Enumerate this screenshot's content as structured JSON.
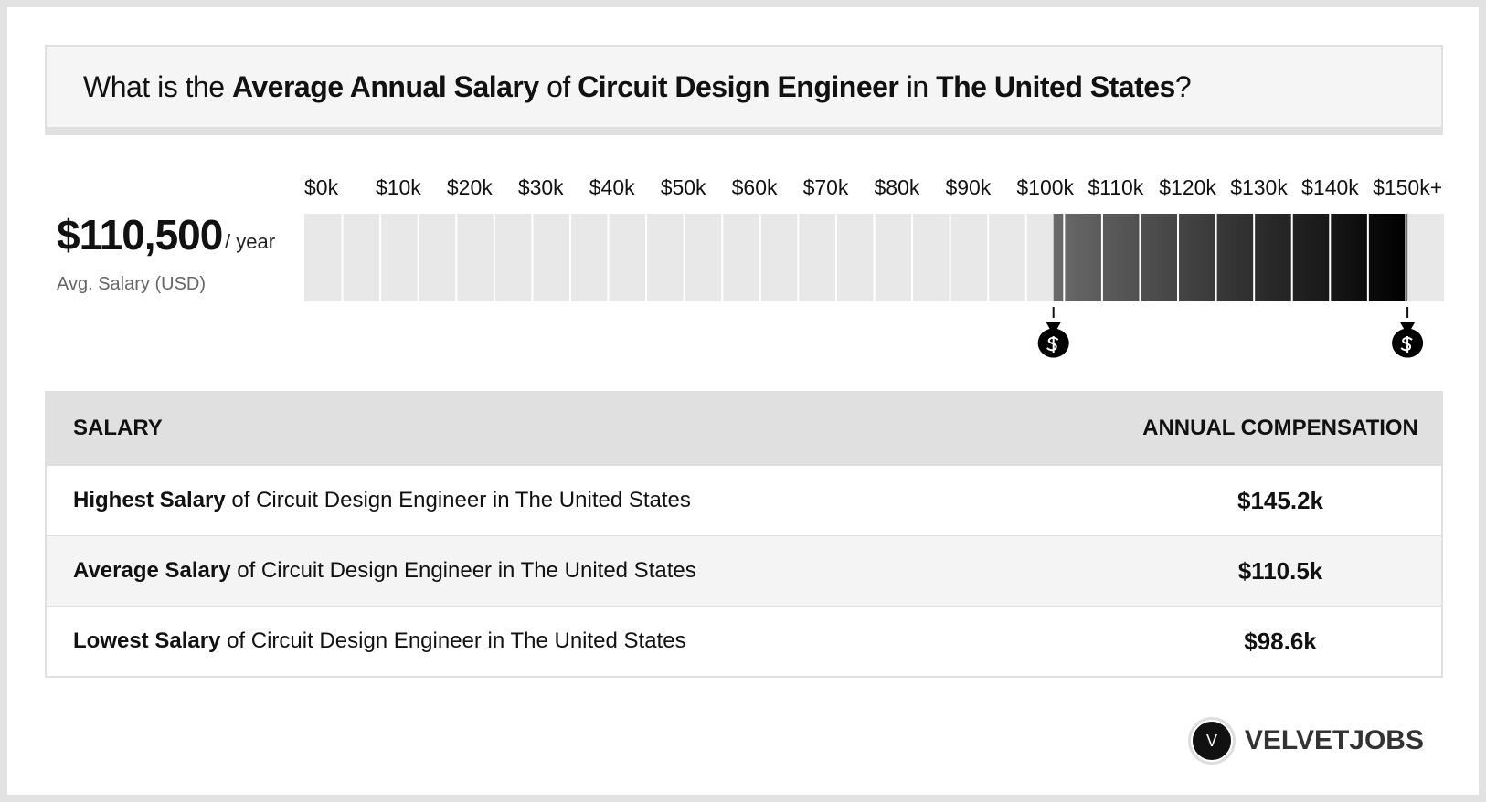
{
  "header": {
    "title_parts": [
      {
        "text": "What is the ",
        "bold": false
      },
      {
        "text": "Average Annual Salary",
        "bold": true
      },
      {
        "text": " of ",
        "bold": false
      },
      {
        "text": "Circuit Design Engineer",
        "bold": true
      },
      {
        "text": " in ",
        "bold": false
      },
      {
        "text": "The United States",
        "bold": true
      },
      {
        "text": "?",
        "bold": false
      }
    ]
  },
  "summary": {
    "amount": "$110,500",
    "unit": "/ year",
    "caption": "Avg. Salary (USD)"
  },
  "scale": {
    "xlim": [
      0,
      150
    ],
    "ticks": [
      {
        "value": 0,
        "label": "$0k"
      },
      {
        "value": 10,
        "label": "$10k"
      },
      {
        "value": 20,
        "label": "$20k"
      },
      {
        "value": 30,
        "label": "$30k"
      },
      {
        "value": 40,
        "label": "$40k"
      },
      {
        "value": 50,
        "label": "$50k"
      },
      {
        "value": 60,
        "label": "$60k"
      },
      {
        "value": 70,
        "label": "$70k"
      },
      {
        "value": 80,
        "label": "$80k"
      },
      {
        "value": 90,
        "label": "$90k"
      },
      {
        "value": 100,
        "label": "$100k"
      },
      {
        "value": 110,
        "label": "$110k"
      },
      {
        "value": 120,
        "label": "$120k"
      },
      {
        "value": 130,
        "label": "$130k"
      },
      {
        "value": 140,
        "label": "$140k"
      },
      {
        "value": 150,
        "label": "$150k+"
      }
    ],
    "range": {
      "low": 98.6,
      "high": 145.2
    }
  },
  "table": {
    "header": [
      "SALARY",
      "ANNUAL COMPENSATION"
    ],
    "rows": [
      [
        {
          "bold": "Highest Salary",
          "rest": " of Circuit Design Engineer in The United States"
        },
        "$145.2k"
      ],
      [
        {
          "bold": "Average Salary",
          "rest": " of Circuit Design Engineer in The United States"
        },
        "$110.5k"
      ],
      [
        {
          "bold": "Lowest Salary",
          "rest": " of Circuit Design Engineer in The United States"
        },
        "$98.6k"
      ]
    ]
  },
  "logo": {
    "mark": "V",
    "name": "VELVETJOBS"
  }
}
